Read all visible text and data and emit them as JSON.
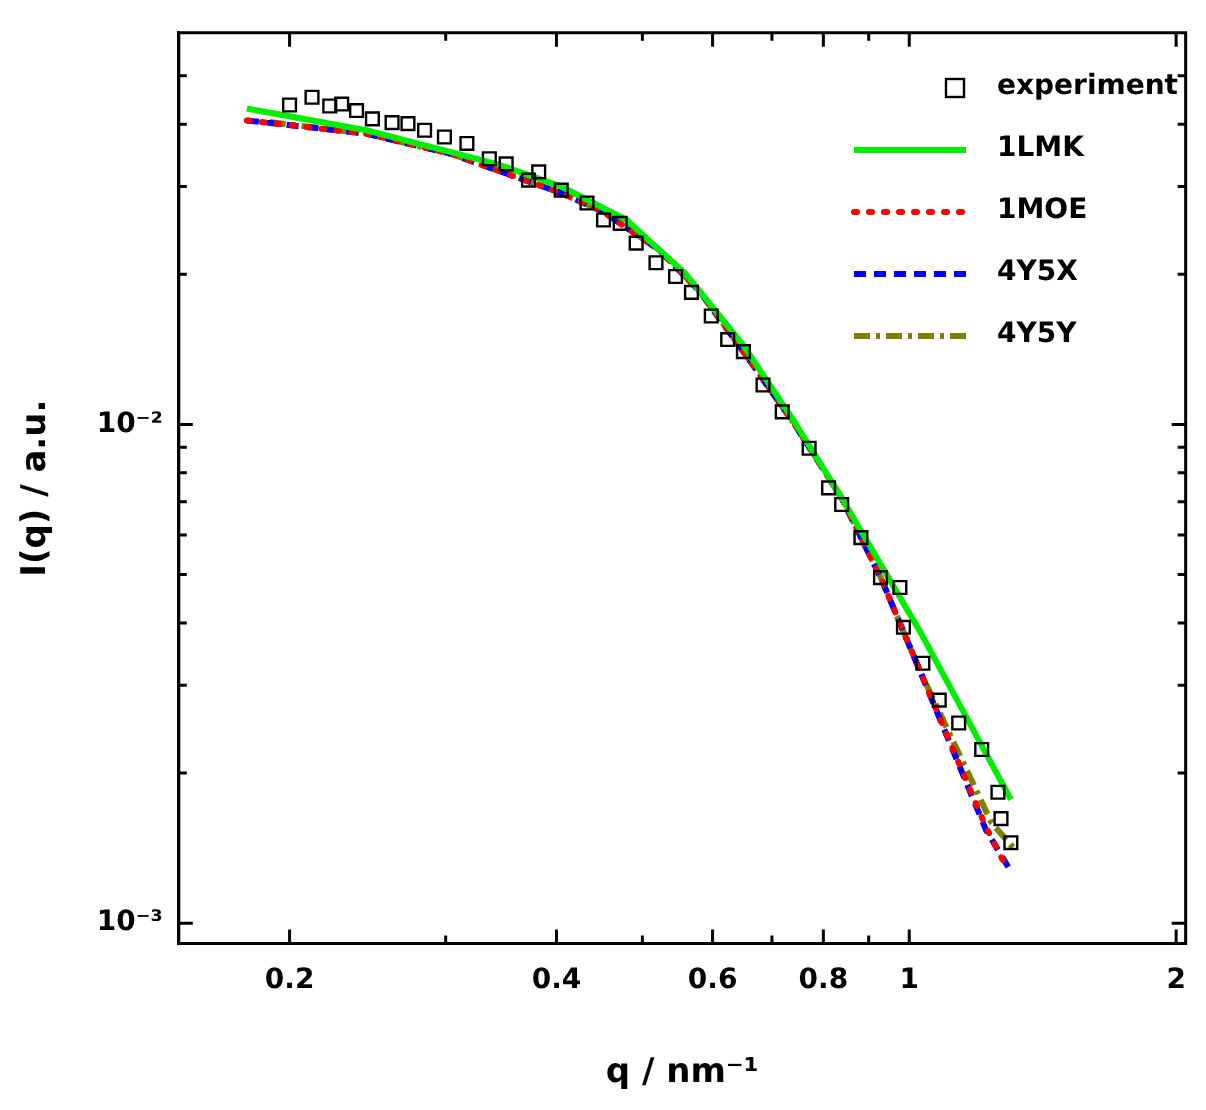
{
  "chart_data": {
    "type": "line",
    "xlabel": "q / nm⁻¹",
    "ylabel": "I(q) / a.u.",
    "log": "xy",
    "grid": false,
    "legend": "top right",
    "xlim": [
      0.15,
      2.05
    ],
    "ylim": [
      0.00091,
      0.061
    ],
    "xticks": [
      0.2,
      {
        "value": 0.3,
        "label": null
      },
      0.4,
      {
        "value": 0.5,
        "label": null
      },
      0.6,
      {
        "value": 0.7,
        "label": null
      },
      0.8,
      {
        "value": 0.9,
        "label": null
      },
      1,
      2
    ],
    "yticks": [
      {
        "value": 0.001,
        "label": "10⁻³"
      },
      {
        "value": 0.002,
        "label": null
      },
      {
        "value": 0.003,
        "label": null
      },
      {
        "value": 0.004,
        "label": null
      },
      {
        "value": 0.005,
        "label": null
      },
      {
        "value": 0.006,
        "label": null
      },
      {
        "value": 0.007,
        "label": null
      },
      {
        "value": 0.008,
        "label": null
      },
      {
        "value": 0.009,
        "label": null
      },
      {
        "value": 0.01,
        "label": "10⁻²"
      },
      {
        "value": 0.02,
        "label": null
      },
      {
        "value": 0.03,
        "label": null
      },
      {
        "value": 0.04,
        "label": null
      },
      {
        "value": 0.05,
        "label": null
      }
    ],
    "series": [
      {
        "name": "experiment",
        "type": "scatter",
        "marker": "square",
        "color": "#000000",
        "x": [
          0.2,
          0.212,
          0.222,
          0.229,
          0.238,
          0.248,
          0.261,
          0.272,
          0.284,
          0.299,
          0.317,
          0.336,
          0.351,
          0.372,
          0.382,
          0.405,
          0.433,
          0.452,
          0.472,
          0.492,
          0.518,
          0.545,
          0.568,
          0.598,
          0.624,
          0.65,
          0.684,
          0.719,
          0.771,
          0.811,
          0.839,
          0.882,
          0.928,
          0.976,
          0.985,
          1.036,
          1.081,
          1.137,
          1.207,
          1.259,
          1.269,
          1.302
        ],
        "values": [
          0.0437,
          0.0453,
          0.0435,
          0.0439,
          0.0426,
          0.041,
          0.0403,
          0.0401,
          0.0389,
          0.0377,
          0.0366,
          0.0341,
          0.0333,
          0.0309,
          0.0321,
          0.0295,
          0.0278,
          0.0257,
          0.0253,
          0.0231,
          0.0211,
          0.0198,
          0.0184,
          0.0165,
          0.0148,
          0.014,
          0.012,
          0.0106,
          0.00896,
          0.00746,
          0.00691,
          0.00593,
          0.00493,
          0.00471,
          0.00392,
          0.00332,
          0.0028,
          0.00252,
          0.00223,
          0.00183,
          0.00162,
          0.00145
        ]
      },
      {
        "name": "1LMK",
        "type": "line",
        "line_style": "solid",
        "color": "#00ee00",
        "x": [
          0.179,
          0.244,
          0.342,
          0.405,
          0.48,
          0.56,
          0.65,
          0.74,
          0.839,
          1.027,
          1.302
        ],
        "values": [
          0.043,
          0.0389,
          0.0333,
          0.03,
          0.0257,
          0.02,
          0.0144,
          0.0102,
          0.00712,
          0.00386,
          0.00177
        ]
      },
      {
        "name": "1MOE",
        "type": "line",
        "line_style": "dotted",
        "color": "#ff0000",
        "x": [
          0.179,
          0.244,
          0.304,
          0.405,
          0.45,
          0.522,
          0.58,
          0.65,
          0.74,
          0.839,
          0.93,
          1.027,
          1.22,
          1.28
        ],
        "values": [
          0.0407,
          0.0383,
          0.0349,
          0.0291,
          0.0268,
          0.0224,
          0.0185,
          0.014,
          0.0101,
          0.00712,
          0.0049,
          0.00322,
          0.00156,
          0.00132
        ]
      },
      {
        "name": "4Y5X",
        "type": "line",
        "line_style": "dashed",
        "color": "#0000ff",
        "x": [
          0.179,
          0.244,
          0.304,
          0.405,
          0.45,
          0.522,
          0.58,
          0.65,
          0.74,
          0.839,
          0.93,
          1.027,
          1.22,
          1.302
        ],
        "values": [
          0.0407,
          0.0383,
          0.0349,
          0.0291,
          0.0268,
          0.0224,
          0.0185,
          0.014,
          0.0101,
          0.00712,
          0.0049,
          0.00322,
          0.00154,
          0.00127
        ]
      },
      {
        "name": "4Y5Y",
        "type": "line",
        "line_style": "dashdot",
        "color": "#808000",
        "x": [
          0.19,
          0.244,
          0.304,
          0.405,
          0.45,
          0.522,
          0.58,
          0.65,
          0.74,
          0.839,
          0.93,
          1.027,
          1.238,
          1.313
        ],
        "values": [
          0.0404,
          0.0383,
          0.0349,
          0.0291,
          0.0268,
          0.0224,
          0.0185,
          0.014,
          0.0101,
          0.00712,
          0.0049,
          0.00322,
          0.00159,
          0.00141
        ]
      }
    ]
  }
}
